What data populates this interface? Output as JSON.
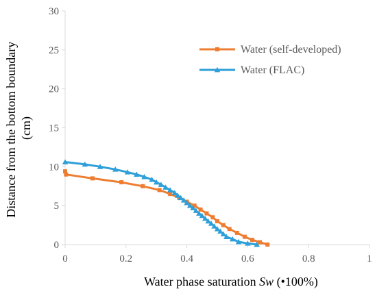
{
  "chart_data": {
    "type": "line",
    "title": "",
    "xlabel_prefix": "Water phase saturation ",
    "xlabel_var": "Sw",
    "xlabel_suffix": " (•100%)",
    "ylabel_line1": "Distance from the bottom boundary",
    "ylabel_line2": "(cm)",
    "xlim": [
      0,
      1
    ],
    "ylim": [
      0,
      30
    ],
    "x_ticks": [
      0,
      0.2,
      0.4,
      0.6,
      0.8,
      1
    ],
    "x_tick_labels": [
      "0",
      "0.2",
      "0.4",
      "0.6",
      "0.8",
      "1"
    ],
    "y_ticks": [
      0,
      5,
      10,
      15,
      20,
      25,
      30
    ],
    "y_tick_labels": [
      "0",
      "5",
      "10",
      "15",
      "20",
      "25",
      "30"
    ],
    "grid": false,
    "legend_position": "top-right",
    "series": [
      {
        "name": "Water (self-developed)",
        "color": "#ED7D31",
        "marker": "square",
        "points": [
          [
            0.0,
            9.4
          ],
          [
            0.003,
            9.0
          ],
          [
            0.09,
            8.5
          ],
          [
            0.185,
            8.0
          ],
          [
            0.255,
            7.5
          ],
          [
            0.31,
            7.0
          ],
          [
            0.345,
            6.5
          ],
          [
            0.375,
            6.0
          ],
          [
            0.4,
            5.5
          ],
          [
            0.425,
            5.0
          ],
          [
            0.445,
            4.5
          ],
          [
            0.465,
            4.0
          ],
          [
            0.485,
            3.5
          ],
          [
            0.5,
            3.0
          ],
          [
            0.52,
            2.5
          ],
          [
            0.54,
            2.0
          ],
          [
            0.565,
            1.5
          ],
          [
            0.59,
            1.0
          ],
          [
            0.615,
            0.6
          ],
          [
            0.64,
            0.3
          ],
          [
            0.665,
            0.0
          ]
        ]
      },
      {
        "name": "Water (FLAC)",
        "color": "#2E9FD8",
        "marker": "triangle",
        "points": [
          [
            0.0,
            10.6
          ],
          [
            0.065,
            10.3
          ],
          [
            0.115,
            10.0
          ],
          [
            0.165,
            9.65
          ],
          [
            0.205,
            9.3
          ],
          [
            0.235,
            9.0
          ],
          [
            0.26,
            8.7
          ],
          [
            0.285,
            8.35
          ],
          [
            0.3,
            8.0
          ],
          [
            0.315,
            7.7
          ],
          [
            0.33,
            7.35
          ],
          [
            0.345,
            7.0
          ],
          [
            0.36,
            6.65
          ],
          [
            0.37,
            6.3
          ],
          [
            0.38,
            6.0
          ],
          [
            0.39,
            5.7
          ],
          [
            0.4,
            5.35
          ],
          [
            0.41,
            5.0
          ],
          [
            0.42,
            4.7
          ],
          [
            0.43,
            4.35
          ],
          [
            0.44,
            4.0
          ],
          [
            0.45,
            3.7
          ],
          [
            0.46,
            3.35
          ],
          [
            0.47,
            3.0
          ],
          [
            0.48,
            2.7
          ],
          [
            0.49,
            2.35
          ],
          [
            0.5,
            2.0
          ],
          [
            0.51,
            1.7
          ],
          [
            0.52,
            1.35
          ],
          [
            0.53,
            1.0
          ],
          [
            0.55,
            0.7
          ],
          [
            0.57,
            0.35
          ],
          [
            0.6,
            0.15
          ],
          [
            0.63,
            0.0
          ]
        ]
      }
    ]
  },
  "colors": {
    "axis": "#D9D9D9",
    "tick_text": "#595959",
    "axis_title": "#000000"
  }
}
